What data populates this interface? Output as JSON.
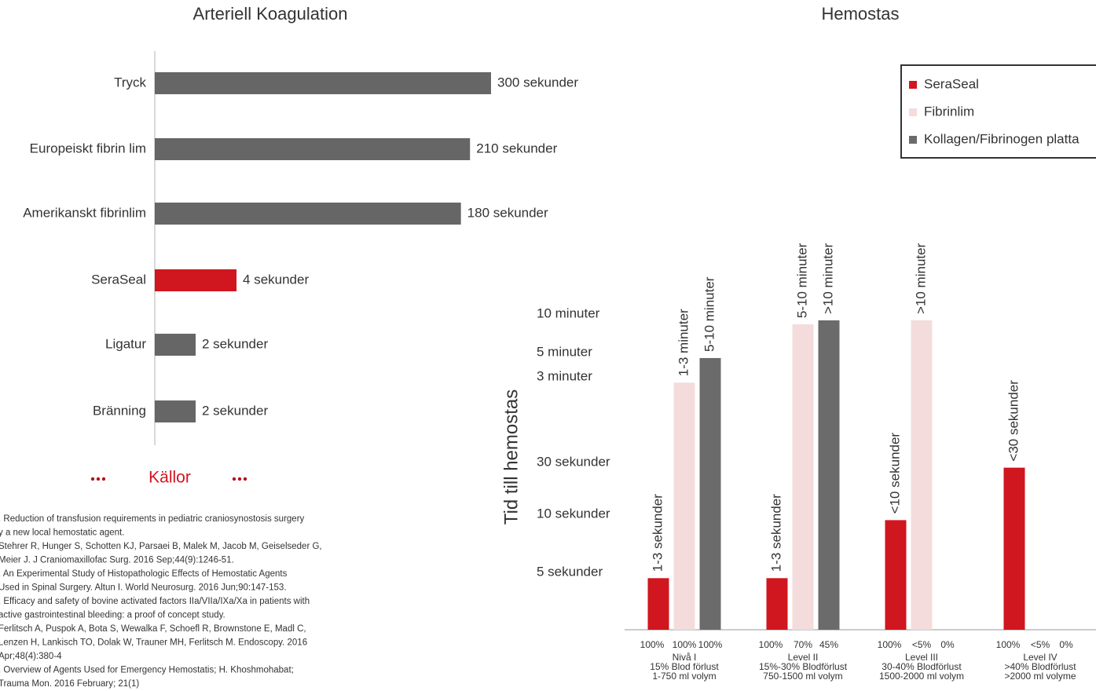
{
  "chart_data": [
    {
      "type": "hbar",
      "title": "Arteriell Koagulation",
      "categories": [
        "Tryck",
        "Europeiskt fibrin lim",
        "Amerikanskt fibrinlim",
        "SeraSeal",
        "Ligatur",
        "Bränning"
      ],
      "values": [
        300,
        210,
        180,
        4,
        2,
        2
      ],
      "value_labels": [
        "300 sekunder",
        "210 sekunder",
        "180 sekunder",
        "4 sekunder",
        "2 sekunder",
        "2 sekunder"
      ],
      "colors": [
        "#666666",
        "#666666",
        "#666666",
        "#d0161f",
        "#666666",
        "#666666"
      ],
      "xlim": [
        1,
        300
      ],
      "log_scale": true
    },
    {
      "type": "grouped_bar",
      "title": "Hemostas",
      "y_label": "Tid till hemostas",
      "categories": [
        "Nivå  I",
        "Level II",
        "Level III",
        "Level IV"
      ],
      "category_notes": [
        [
          "15% Blod  förlust",
          "1-750 ml volym"
        ],
        [
          "15%-30% Blodförlust",
          "750-1500 ml volym"
        ],
        [
          "30-40% Blodförlust",
          "1500-2000 ml volym"
        ],
        [
          ">40% Blodförlust",
          ">2000 ml volyme"
        ]
      ],
      "series": [
        {
          "name": "SeraSeal",
          "color": "#d0161f",
          "values": [
            4.5,
            4.5,
            9.5,
            28
          ],
          "value_labels": [
            "1-3 sekunder",
            "1-3 sekunder",
            "<10 sekunder",
            "<30 sekunder"
          ],
          "shares": [
            100,
            100,
            100,
            100
          ],
          "share_labels": [
            "100%",
            "100%",
            "100%",
            "100%"
          ]
        },
        {
          "name": "Fibrinlim",
          "color": "#f4dcdc",
          "values": [
            170,
            520,
            551,
            null
          ],
          "value_labels": [
            "1-3 minuter",
            "5-10 minuter",
            ">10 minuter",
            null
          ],
          "shares": [
            100,
            70,
            5,
            5
          ],
          "share_labels": [
            "100%",
            "70%",
            "<5%",
            "<5%"
          ]
        },
        {
          "name": "Kollagen/Fibrinogen platta",
          "color": "#6b6b6b",
          "values": [
            273,
            551,
            null,
            null
          ],
          "value_labels": [
            "5-10 minuter",
            ">10 minuter",
            null,
            null
          ],
          "shares": [
            100,
            45,
            0,
            0
          ],
          "share_labels": [
            "100%",
            "45%",
            "0%",
            "0%"
          ]
        }
      ],
      "ylim": [
        0,
        600
      ],
      "yticks": [
        {
          "value": 5,
          "label": "5 sekunder"
        },
        {
          "value": 10,
          "label": "10 sekunder"
        },
        {
          "value": 30,
          "label": "30 sekunder"
        },
        {
          "value": 180,
          "label": "3 minuter"
        },
        {
          "value": 300,
          "label": "5 minuter"
        },
        {
          "value": 600,
          "label": "10 minuter"
        }
      ],
      "y_scale": "piecewise",
      "legend": "upper right"
    }
  ],
  "sources": {
    "title": "Källor",
    "lines": [
      ".  Reduction of transfusion requirements in pediatric craniosynostosis surgery",
      "y a new local hemostatic agent.",
      "Stehrer R, Hunger S, Schotten KJ, Parsaei B, Malek M, Jacob M, Geiselseder G,",
      "Meier J. J Craniomaxillofac Surg. 2016 Sep;44(9):1246-51.",
      ".  An Experimental Study of Histopathologic Effects of Hemostatic Agents",
      "Used in Spinal Surgery. Altun I. World Neurosurg. 2016 Jun;90:147-153.",
      ".  Efficacy and safety of bovine activated factors IIa/VIIa/IXa/Xa in patients with",
      "active gastrointestinal bleeding: a proof of concept study.",
      "Ferlitsch A, Puspok A, Bota S, Wewalka F, Schoefl R, Brownstone E, Madl C,",
      "Lenzen H, Lankisch TO, Dolak W, Trauner MH, Ferlitsch M. Endoscopy. 2016",
      "Apr;48(4):380-4",
      ".  Overview of Agents Used for Emergency Hemostatis; H. Khoshmohabat;",
      "Trauma Mon. 2016 February; 21(1)"
    ]
  }
}
